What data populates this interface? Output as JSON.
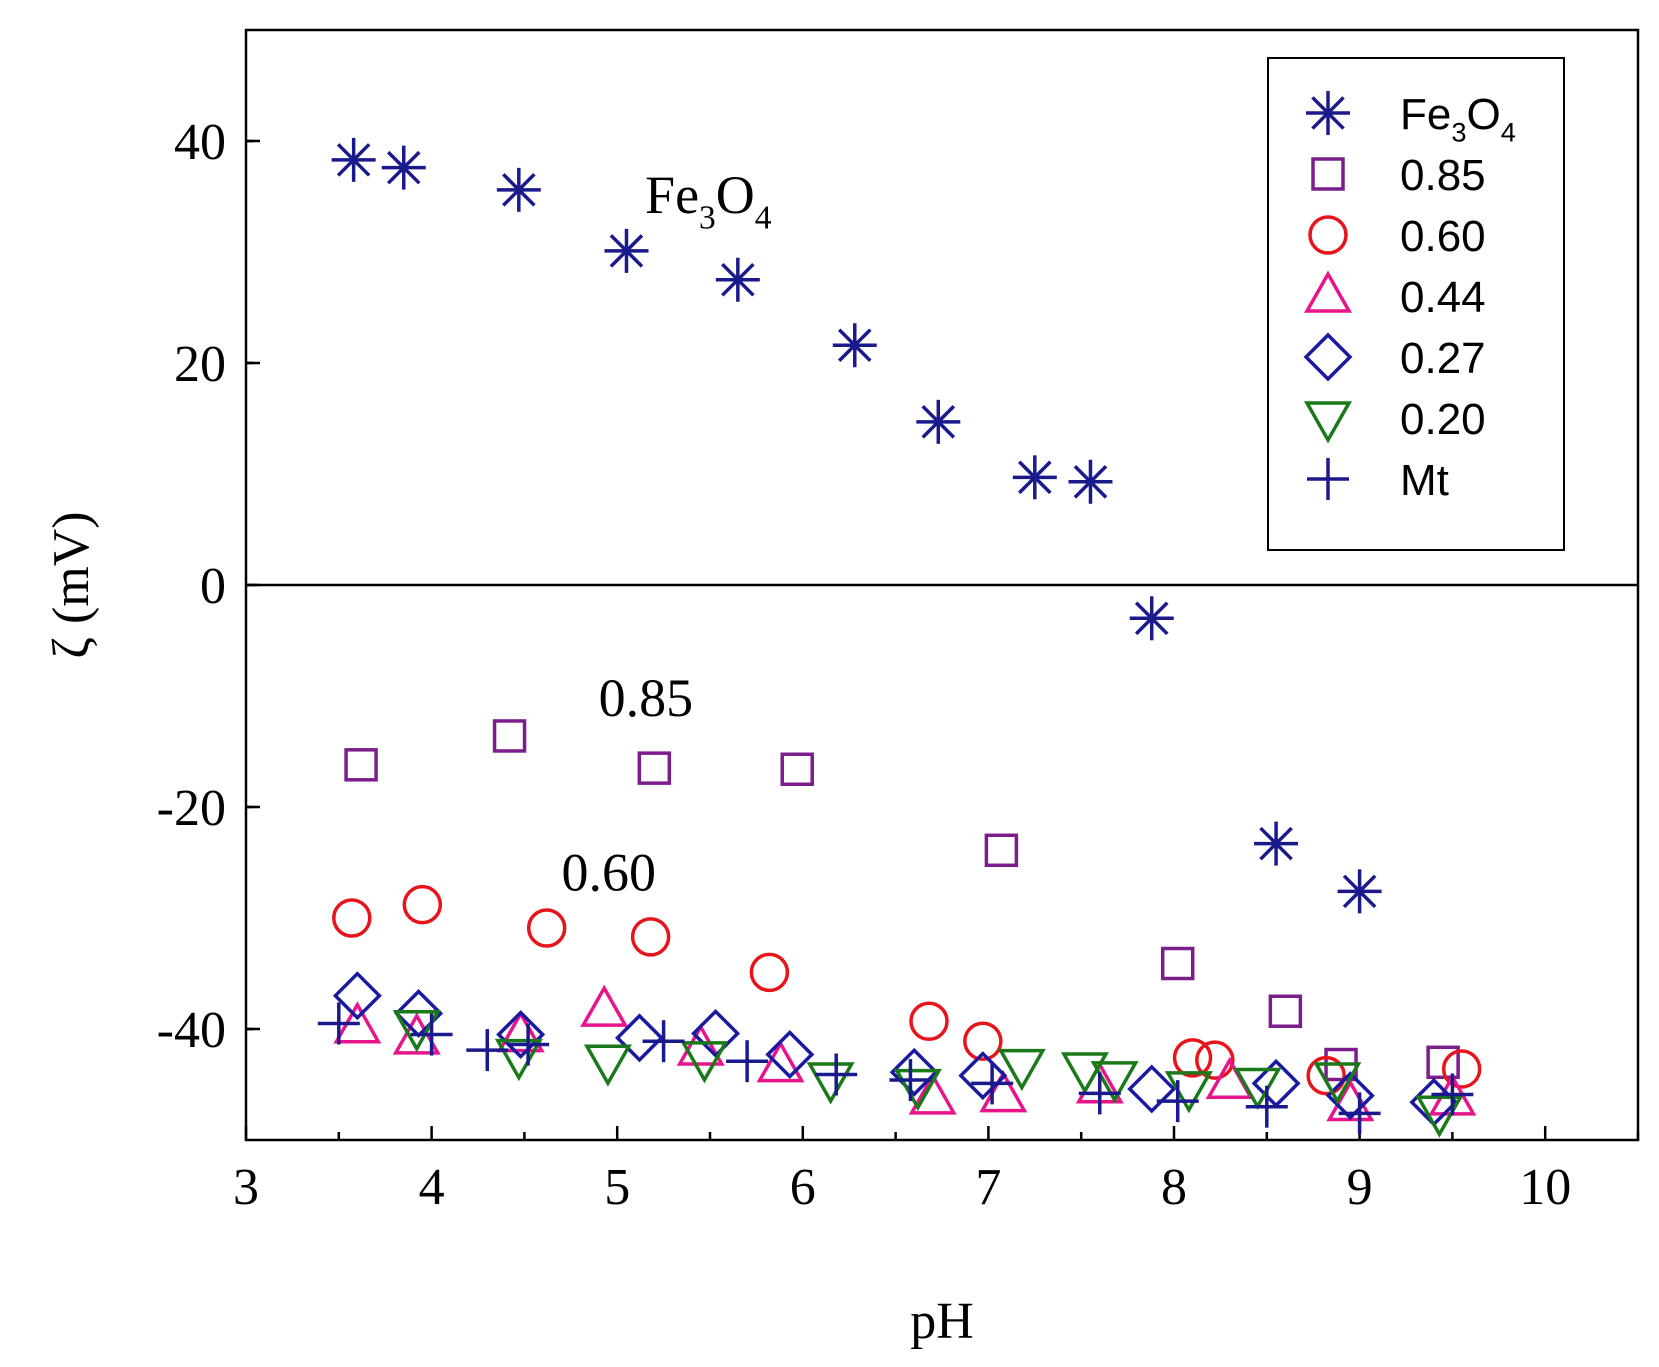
{
  "chart_data": {
    "type": "scatter",
    "xlabel": "pH",
    "ylabel": "ζ (mV)",
    "xlim": [
      3,
      10.5
    ],
    "ylim": [
      -50,
      50
    ],
    "xticks": [
      3,
      4,
      5,
      6,
      7,
      8,
      9,
      10
    ],
    "yticks": [
      40,
      20,
      0,
      -20,
      -40
    ],
    "zero_line": true,
    "legend_position": "top-right",
    "annotations": [
      {
        "parts": [
          {
            "t": "Fe"
          },
          {
            "t": "3",
            "sub": true
          },
          {
            "t": "O"
          },
          {
            "t": "4",
            "sub": true
          }
        ],
        "x": 5.15,
        "y": 33.5
      },
      {
        "parts": [
          {
            "t": "0.85"
          }
        ],
        "x": 4.9,
        "y": -11.8
      },
      {
        "parts": [
          {
            "t": "0.60"
          }
        ],
        "x": 4.7,
        "y": -27.5
      }
    ],
    "series": [
      {
        "name": "Fe3O4",
        "label_parts": [
          {
            "t": "Fe"
          },
          {
            "t": "3",
            "sub": true
          },
          {
            "t": "O"
          },
          {
            "t": "4",
            "sub": true
          }
        ],
        "marker": "asterisk",
        "color": "#1a1a8c",
        "points": [
          [
            3.58,
            38.3
          ],
          [
            3.85,
            37.6
          ],
          [
            4.47,
            35.6
          ],
          [
            5.05,
            30.1
          ],
          [
            5.65,
            27.5
          ],
          [
            6.28,
            21.6
          ],
          [
            6.73,
            14.7
          ],
          [
            7.25,
            9.7
          ],
          [
            7.55,
            9.3
          ],
          [
            7.88,
            -3.0
          ],
          [
            8.55,
            -23.3
          ],
          [
            9.0,
            -27.6
          ]
        ]
      },
      {
        "name": "0.85",
        "label_parts": [
          {
            "t": "0.85"
          }
        ],
        "marker": "square",
        "color": "#7b1e8c",
        "points": [
          [
            3.62,
            -16.2
          ],
          [
            4.42,
            -13.6
          ],
          [
            5.2,
            -16.5
          ],
          [
            5.97,
            -16.6
          ],
          [
            7.07,
            -23.9
          ],
          [
            8.02,
            -34.1
          ],
          [
            8.6,
            -38.4
          ],
          [
            8.9,
            -43.2
          ],
          [
            9.45,
            -43.0
          ]
        ]
      },
      {
        "name": "0.60",
        "label_parts": [
          {
            "t": "0.60"
          }
        ],
        "marker": "circle",
        "color": "#e8141c",
        "points": [
          [
            3.57,
            -30.0
          ],
          [
            3.95,
            -28.8
          ],
          [
            4.62,
            -30.9
          ],
          [
            5.18,
            -31.7
          ],
          [
            5.82,
            -34.9
          ],
          [
            6.68,
            -39.3
          ],
          [
            6.97,
            -41.1
          ],
          [
            8.1,
            -42.6
          ],
          [
            8.22,
            -42.8
          ],
          [
            8.82,
            -44.2
          ],
          [
            9.55,
            -43.6
          ]
        ]
      },
      {
        "name": "0.44",
        "label_parts": [
          {
            "t": "0.44"
          }
        ],
        "marker": "triangle-up",
        "color": "#e8148c",
        "points": [
          [
            3.6,
            -39.8
          ],
          [
            3.92,
            -40.8
          ],
          [
            4.48,
            -40.6
          ],
          [
            4.93,
            -38.3
          ],
          [
            5.45,
            -41.8
          ],
          [
            5.88,
            -43.3
          ],
          [
            6.7,
            -46.2
          ],
          [
            7.08,
            -46.0
          ],
          [
            7.6,
            -45.2
          ],
          [
            8.3,
            -44.8
          ],
          [
            8.95,
            -46.8
          ],
          [
            9.5,
            -46.3
          ]
        ]
      },
      {
        "name": "0.27",
        "label_parts": [
          {
            "t": "0.27"
          }
        ],
        "marker": "diamond",
        "color": "#1a1aa0",
        "points": [
          [
            3.6,
            -37.0
          ],
          [
            3.93,
            -38.6
          ],
          [
            4.48,
            -40.5
          ],
          [
            5.12,
            -40.8
          ],
          [
            5.53,
            -40.4
          ],
          [
            5.93,
            -42.3
          ],
          [
            6.6,
            -43.9
          ],
          [
            6.97,
            -44.2
          ],
          [
            7.88,
            -45.4
          ],
          [
            8.55,
            -44.9
          ],
          [
            8.95,
            -46.0
          ],
          [
            9.4,
            -46.6
          ]
        ]
      },
      {
        "name": "0.20",
        "label_parts": [
          {
            "t": "0.20"
          }
        ],
        "marker": "triangle-down",
        "color": "#1a7a1a",
        "points": [
          [
            3.92,
            -39.8
          ],
          [
            4.47,
            -42.4
          ],
          [
            4.95,
            -42.9
          ],
          [
            5.47,
            -42.6
          ],
          [
            6.15,
            -44.5
          ],
          [
            6.62,
            -45.1
          ],
          [
            7.18,
            -43.3
          ],
          [
            7.52,
            -43.6
          ],
          [
            7.68,
            -44.4
          ],
          [
            8.08,
            -45.3
          ],
          [
            8.45,
            -45.0
          ],
          [
            8.88,
            -44.5
          ],
          [
            9.43,
            -47.5
          ]
        ]
      },
      {
        "name": "Mt",
        "label_parts": [
          {
            "t": "Mt"
          }
        ],
        "marker": "plus",
        "color": "#1a1a8c",
        "points": [
          [
            3.5,
            -39.5
          ],
          [
            4.0,
            -40.5
          ],
          [
            4.3,
            -41.9
          ],
          [
            4.52,
            -41.4
          ],
          [
            5.25,
            -41.1
          ],
          [
            5.7,
            -42.9
          ],
          [
            6.18,
            -44.1
          ],
          [
            6.58,
            -44.6
          ],
          [
            7.02,
            -44.9
          ],
          [
            7.6,
            -45.8
          ],
          [
            8.02,
            -46.5
          ],
          [
            8.5,
            -47.0
          ],
          [
            9.0,
            -47.6
          ],
          [
            9.5,
            -45.9
          ]
        ]
      }
    ]
  }
}
